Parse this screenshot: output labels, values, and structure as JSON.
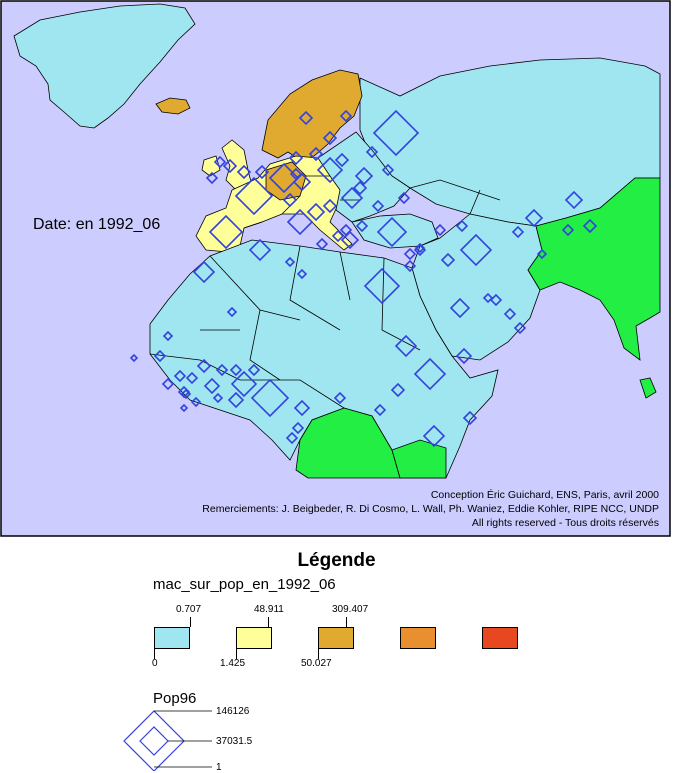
{
  "map": {
    "date_label": "Date: en 1992_06",
    "credits": [
      "Conception Éric Guichard, ENS, Paris, avril 2000",
      "Remerciements: J. Beigbeder, R. Di Cosmo, L. Wall, Ph. Waniez, Eddie Kohler, RIPE NCC, UNDP",
      "All rights reserved - Tous droits réservés"
    ],
    "colors": {
      "ocean": "#ccccff",
      "class_0": "#a0e6f0",
      "class_1": "#ffff99",
      "class_2": "#e0aa30",
      "class_3": "#e89030",
      "class_4": "#e84820",
      "no_data": "#22ee44",
      "symbol": "#3344dd"
    }
  },
  "legend": {
    "title": "Légende",
    "variable": "mac_sur_pop_en_1992_06",
    "upper_bounds": [
      "0.707",
      "48.911",
      "309.407"
    ],
    "lower_bounds": [
      "0",
      "1.425",
      "50.027"
    ],
    "pop_title": "Pop96",
    "pop_values": [
      "146126",
      "37031.5",
      "1"
    ]
  }
}
